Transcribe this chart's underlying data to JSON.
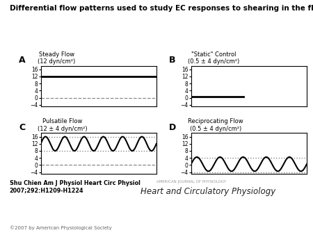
{
  "title": "Differential flow patterns used to study EC responses to shearing in the flow chambers.",
  "title_fontsize": 7.5,
  "panel_labels": [
    "A",
    "B",
    "C",
    "D"
  ],
  "panel_titles": [
    "Steady Flow\n(12 dyn/cm²)",
    "\"Static\" Control\n(0.5 ± 4 dyn/cm²)",
    "Pulsatile Flow\n(12 ± 4 dyn/cm²)",
    "Reciprocating Flow\n(0.5 ± 4 dyn/cm²)"
  ],
  "ylim": [
    -5,
    18
  ],
  "yticks": [
    -4,
    0,
    4,
    8,
    12,
    16
  ],
  "background_color": "#ffffff",
  "line_color": "#000000",
  "dashed_color": "#888888",
  "dotted_color": "#888888",
  "footer_text1": "Shu Chien Am J Physiol Heart Circ Physiol",
  "footer_text2": "2007;292:H1209-H1224",
  "footer_journal": "Heart and Circulatory Physiology",
  "footer_journal_small": "AMERICAN JOURNAL OF PHYSIOLOGY",
  "copyright": "©2007 by American Physiological Society"
}
